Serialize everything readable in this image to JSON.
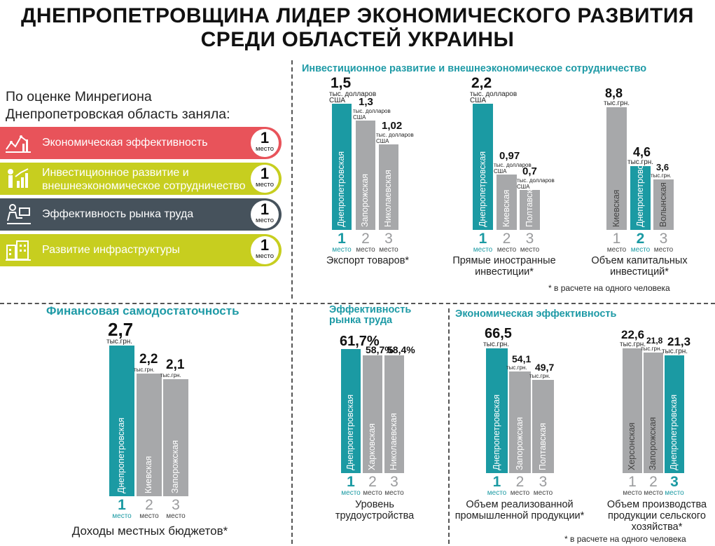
{
  "title": {
    "line1": "ДНЕПРОПЕТРОВЩИНА ЛИДЕР ЭКОНОМИЧЕСКОГО РАЗВИТИЯ",
    "line2": "СРЕДИ ОБЛАСТЕЙ УКРАИНЫ"
  },
  "intro": {
    "line1": "По оценке Минрегиона",
    "line2": "Днепропетровская область заняла:"
  },
  "badges": [
    {
      "label1": "Экономическая эффективность",
      "label2": "",
      "place": "1",
      "place_word": "место",
      "color": "#e8535a",
      "icon": "chart-analytics-icon"
    },
    {
      "label1": "Инвестиционное развитие и",
      "label2": "внешнеэкономическое сотрудничество",
      "place": "1",
      "place_word": "место",
      "color": "#c7ce1f",
      "icon": "growth-chart-person-icon"
    },
    {
      "label1": "Эффективность рынка труда",
      "label2": "",
      "place": "1",
      "place_word": "место",
      "color": "#46525c",
      "icon": "office-worker-icon"
    },
    {
      "label1": "Развитие инфраструктуры",
      "label2": "",
      "place": "1",
      "place_word": "место",
      "color": "#c7ce1f",
      "icon": "buildings-icon"
    }
  ],
  "sections": {
    "investment": "Инвестиционное развитие и внешнеэкономическое сотрудничество",
    "finance": "Финансовая самодостаточность",
    "labor": "Эффективность рынка труда",
    "economic": "Экономическая эффективность"
  },
  "notes": {
    "per_capita_1": "* в расчете на одного человека",
    "per_capita_2": "* в расчете на одного человека"
  },
  "colors": {
    "teal": "#1b9aa3",
    "gray": "#a7a8aa"
  },
  "chart_data": [
    {
      "id": "export",
      "type": "bar",
      "title": "Экспорт товаров*",
      "categories": [
        "Днепропетровская",
        "Запорожская",
        "Николаевская"
      ],
      "values": [
        1.5,
        1.3,
        1.02
      ],
      "value_labels": [
        "1,5",
        "1,3",
        "1,02"
      ],
      "unit_labels": [
        "тыс. долларов США",
        "тыс. долларов США",
        "тыс. долларов США"
      ],
      "ranks": [
        "1",
        "2",
        "3"
      ],
      "rank_word": "место",
      "highlight": 0
    },
    {
      "id": "fdi",
      "type": "bar",
      "title": "Прямые иностранные инвестиции*",
      "categories": [
        "Днепропетровская",
        "Киевская",
        "Полтавская"
      ],
      "values": [
        2.2,
        0.97,
        0.7
      ],
      "value_labels": [
        "2,2",
        "0,97",
        "0,7"
      ],
      "unit_labels": [
        "тыс. долларов США",
        "тыс. долларов США",
        "тыс. долларов США"
      ],
      "ranks": [
        "1",
        "2",
        "3"
      ],
      "rank_word": "место",
      "highlight": 0
    },
    {
      "id": "capital",
      "type": "bar",
      "title": "Объем капитальных инвестиций*",
      "categories": [
        "Киевская",
        "Днепропетровская",
        "Волынская"
      ],
      "values": [
        8.8,
        4.6,
        3.6
      ],
      "value_labels": [
        "8,8",
        "4,6",
        "3,6"
      ],
      "unit_labels": [
        "тыс.грн.",
        "тыс.грн.",
        "тыс.грн."
      ],
      "ranks": [
        "1",
        "2",
        "3"
      ],
      "rank_word": "место",
      "highlight": 1
    },
    {
      "id": "budget",
      "type": "bar",
      "title": "Доходы местных бюджетов*",
      "categories": [
        "Днепропетровская",
        "Киевская",
        "Запорожская"
      ],
      "values": [
        2.7,
        2.2,
        2.1
      ],
      "value_labels": [
        "2,7",
        "2,2",
        "2,1"
      ],
      "unit_labels": [
        "тыс.грн.",
        "тыс.грн.",
        "тыс.грн."
      ],
      "ranks": [
        "1",
        "2",
        "3"
      ],
      "rank_word": "место",
      "highlight": 0
    },
    {
      "id": "employment",
      "type": "bar",
      "title": "Уровень трудоустройства",
      "categories": [
        "Днепропетровская",
        "Харковская",
        "Николаевская"
      ],
      "values": [
        61.7,
        58.7,
        58.4
      ],
      "value_labels": [
        "61,7%",
        "58,7%",
        "58,4%"
      ],
      "unit_labels": [
        "",
        "",
        ""
      ],
      "ranks": [
        "1",
        "2",
        "3"
      ],
      "rank_word": "место",
      "highlight": 0
    },
    {
      "id": "industry",
      "type": "bar",
      "title": "Объем реализованной промышленной продукции*",
      "categories": [
        "Днепропетровская",
        "Запорожская",
        "Полтавская"
      ],
      "values": [
        66.5,
        54.1,
        49.7
      ],
      "value_labels": [
        "66,5",
        "54,1",
        "49,7"
      ],
      "unit_labels": [
        "тыс.грн.",
        "тыс.грн.",
        "тыс.грн."
      ],
      "ranks": [
        "1",
        "2",
        "3"
      ],
      "rank_word": "место",
      "highlight": 0
    },
    {
      "id": "agro",
      "type": "bar",
      "title": "Объем производства продукции сельского хозяйства*",
      "categories": [
        "Херсонская",
        "Запорожская",
        "Днепропетровская"
      ],
      "values": [
        22.6,
        21.8,
        21.3
      ],
      "value_labels": [
        "22,6",
        "21,8",
        "21,3"
      ],
      "unit_labels": [
        "тыс.грн.",
        "тыс.грн.",
        "тыс.грн."
      ],
      "ranks": [
        "1",
        "2",
        "3"
      ],
      "rank_word": "место",
      "highlight": 2
    }
  ]
}
